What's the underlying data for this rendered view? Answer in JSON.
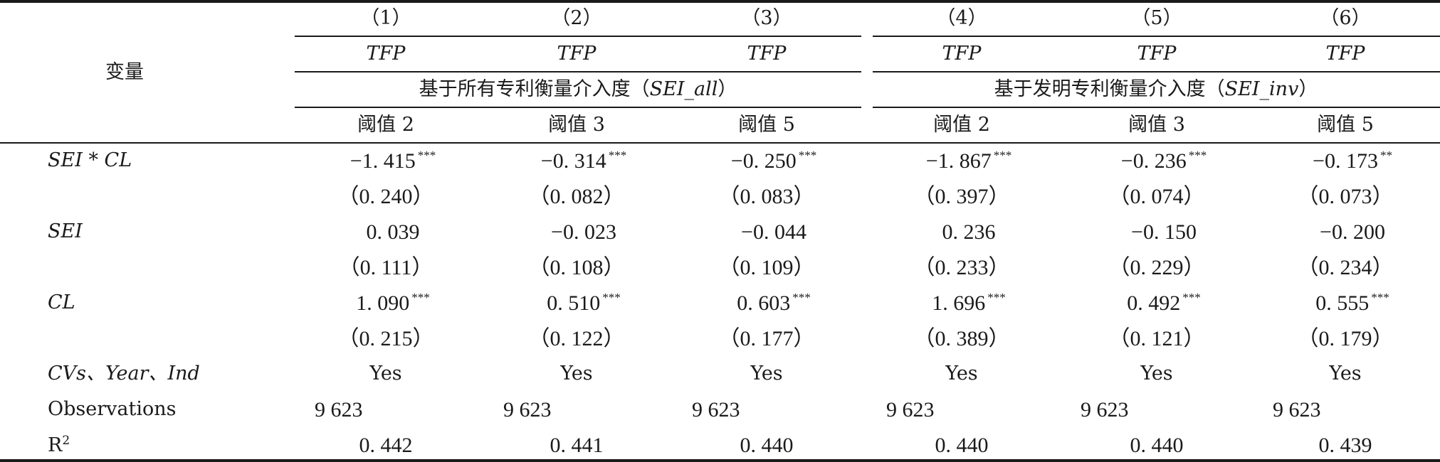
{
  "header": {
    "variable_label": "变量",
    "columns": [
      "（1）",
      "（2）",
      "（3）",
      "（4）",
      "（5）",
      "（6）"
    ],
    "dep_vars": [
      "TFP",
      "TFP",
      "TFP",
      "TFP",
      "TFP",
      "TFP"
    ],
    "group1": {
      "prefix": "基于所有专利衡量介入度（",
      "code": "SEI_all",
      "suffix": "）"
    },
    "group2": {
      "prefix": "基于发明专利衡量介入度（",
      "code": "SEI_inv",
      "suffix": "）"
    },
    "thresholds": [
      "阈值 2",
      "阈值 3",
      "阈值 5",
      "阈值 2",
      "阈值 3",
      "阈值 5"
    ]
  },
  "rows": [
    {
      "label": "SEI * CL",
      "values": [
        "−1. 415",
        "−0. 314",
        "−0. 250",
        "−1. 867",
        "−0. 236",
        "−0. 173"
      ],
      "stars": [
        "***",
        "***",
        "***",
        "***",
        "***",
        "**"
      ],
      "se": [
        "（0. 240）",
        "（0. 082）",
        "（0. 083）",
        "（0. 397）",
        "（0. 074）",
        "（0. 073）"
      ]
    },
    {
      "label": "SEI",
      "values": [
        "0. 039",
        "−0. 023",
        "−0. 044",
        "0. 236",
        "−0. 150",
        "−0. 200"
      ],
      "stars": [
        "",
        "",
        "",
        "",
        "",
        ""
      ],
      "se": [
        "（0. 111）",
        "（0. 108）",
        "（0. 109）",
        "（0. 233）",
        "（0. 229）",
        "（0. 234）"
      ]
    },
    {
      "label": "CL",
      "values": [
        "1. 090",
        "0. 510",
        "0. 603",
        "1. 696",
        "0. 492",
        "0. 555"
      ],
      "stars": [
        "***",
        "***",
        "***",
        "***",
        "***",
        "***"
      ],
      "se": [
        "（0. 215）",
        "（0. 122）",
        "（0. 177）",
        "（0. 389）",
        "（0. 121）",
        "（0. 179）"
      ]
    }
  ],
  "controls": {
    "label": "CVs、Year、Ind",
    "values": [
      "Yes",
      "Yes",
      "Yes",
      "Yes",
      "Yes",
      "Yes"
    ]
  },
  "observations": {
    "label": "Observations",
    "values": [
      "9 623",
      "9 623",
      "9 623",
      "9 623",
      "9 623",
      "9 623"
    ]
  },
  "r2": {
    "label_base": "R",
    "label_sup": "2",
    "values": [
      "0. 442",
      "0. 441",
      "0. 440",
      "0. 440",
      "0. 440",
      "0. 439"
    ]
  }
}
